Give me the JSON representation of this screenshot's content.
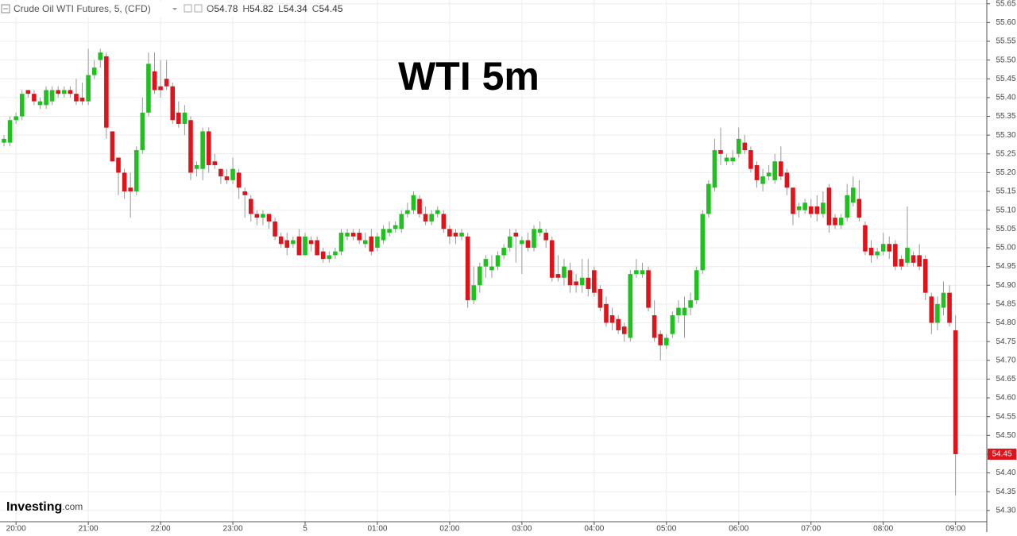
{
  "header": {
    "symbol": "Crude Oil WTI Futures, 5, (CFD)",
    "open_label": "O",
    "open": 54.78,
    "high_label": "H",
    "high": 54.82,
    "low_label": "L",
    "low": 54.34,
    "close_label": "C",
    "close": 54.45
  },
  "logo": {
    "main": "Investing",
    "suffix": ".com"
  },
  "chart_data": {
    "type": "candlestick",
    "title": "WTI 5m",
    "up_color": "#1fc11f",
    "down_color": "#e0121a",
    "grid": true,
    "x": [
      "19:50",
      "19:55",
      "20:00",
      "20:05",
      "20:10",
      "20:15",
      "20:20",
      "20:25",
      "20:30",
      "20:35",
      "20:40",
      "20:45",
      "20:50",
      "20:55",
      "21:00",
      "21:05",
      "21:10",
      "21:15",
      "21:20",
      "21:25",
      "21:30",
      "21:35",
      "21:40",
      "21:45",
      "21:50",
      "21:55",
      "22:00",
      "22:05",
      "22:10",
      "22:15",
      "22:20",
      "22:25",
      "22:30",
      "22:35",
      "22:40",
      "22:45",
      "22:50",
      "22:55",
      "23:00",
      "23:05",
      "23:10",
      "23:15",
      "23:20",
      "23:25",
      "23:30",
      "23:35",
      "23:40",
      "23:45",
      "23:50",
      "23:55",
      "00:00",
      "00:05",
      "00:10",
      "00:15",
      "00:20",
      "00:25",
      "00:30",
      "00:35",
      "00:40",
      "00:45",
      "00:50",
      "00:55",
      "01:00",
      "01:05",
      "01:10",
      "01:15",
      "01:20",
      "01:25",
      "01:30",
      "01:35",
      "01:40",
      "01:45",
      "01:50",
      "01:55",
      "02:00",
      "02:05",
      "02:10",
      "02:15",
      "02:20",
      "02:25",
      "02:30",
      "02:35",
      "02:40",
      "02:45",
      "02:50",
      "02:55",
      "03:00",
      "03:05",
      "03:10",
      "03:15",
      "03:20",
      "03:25",
      "03:30",
      "03:35",
      "03:40",
      "03:45",
      "03:50",
      "03:55",
      "04:00",
      "04:05",
      "04:10",
      "04:15",
      "04:20",
      "04:25",
      "04:30",
      "04:35",
      "04:40",
      "04:45",
      "04:50",
      "04:55",
      "05:00",
      "05:05",
      "05:10",
      "05:15",
      "05:20",
      "05:25",
      "05:30",
      "05:35",
      "05:40",
      "05:45",
      "05:50",
      "05:55",
      "06:00",
      "06:05",
      "06:10",
      "06:15",
      "06:20",
      "06:25",
      "06:30",
      "06:35",
      "06:40",
      "06:45",
      "06:50",
      "06:55",
      "07:00",
      "07:05",
      "07:10",
      "07:15",
      "07:20",
      "07:25",
      "07:30",
      "07:35",
      "07:40",
      "07:45",
      "07:50",
      "07:55",
      "08:00",
      "08:05",
      "08:10",
      "08:15",
      "08:20",
      "08:25",
      "08:30",
      "08:35",
      "08:40",
      "08:45",
      "08:50",
      "08:55",
      "09:00"
    ],
    "open": [
      55.28,
      55.28,
      55.34,
      55.35,
      55.42,
      55.41,
      55.38,
      55.38,
      55.39,
      55.42,
      55.41,
      55.42,
      55.41,
      55.4,
      55.39,
      55.46,
      55.5,
      55.51,
      55.31,
      55.24,
      55.2,
      55.16,
      55.15,
      55.26,
      55.36,
      55.47,
      55.43,
      55.45,
      55.43,
      55.36,
      55.33,
      55.34,
      55.21,
      55.21,
      55.31,
      55.23,
      55.21,
      55.19,
      55.18,
      55.2,
      55.15,
      55.13,
      55.09,
      55.08,
      55.09,
      55.07,
      55.03,
      55.02,
      55.01,
      55.03,
      54.98,
      55.02,
      55.02,
      54.99,
      54.97,
      54.98,
      54.99,
      55.03,
      55.04,
      55.04,
      55.01,
      55.03,
      55.0,
      55.02,
      55.04,
      55.05,
      55.05,
      55.09,
      55.1,
      55.13,
      55.09,
      55.07,
      55.09,
      55.09,
      55.05,
      55.04,
      55.03,
      55.03,
      54.86,
      54.9,
      54.95,
      54.94,
      54.95,
      54.98,
      55.0,
      55.04,
      55.01,
      55.02,
      55.0,
      55.04,
      55.04,
      55.02,
      54.93,
      54.92,
      54.94,
      54.91,
      54.9,
      54.92,
      54.94,
      54.89,
      54.85,
      54.82,
      54.81,
      54.79,
      54.76,
      54.93,
      54.93,
      54.94,
      54.82,
      54.77,
      54.74,
      54.77,
      54.82,
      54.82,
      54.84,
      54.86,
      54.94,
      55.09,
      55.16,
      55.26,
      55.23,
      55.23,
      55.25,
      55.28,
      55.26,
      55.22,
      55.17,
      55.19,
      55.18,
      55.23,
      55.2,
      55.16,
      55.1,
      55.1,
      55.11,
      55.11,
      55.09,
      55.16,
      55.08,
      55.06,
      55.08,
      55.12,
      55.13,
      55.06,
      55.0,
      54.98,
      54.99,
      55.01,
      55.01,
      54.97,
      54.96,
      54.98,
      54.98,
      54.97,
      54.87,
      54.8,
      54.84,
      54.88,
      54.78
    ],
    "high": [
      55.3,
      55.35,
      55.36,
      55.42,
      55.42,
      55.42,
      55.4,
      55.43,
      55.43,
      55.43,
      55.43,
      55.43,
      55.45,
      55.44,
      55.53,
      55.5,
      55.53,
      55.52,
      55.31,
      55.24,
      55.21,
      55.2,
      55.27,
      55.4,
      55.52,
      55.52,
      55.5,
      55.5,
      55.44,
      55.39,
      55.38,
      55.35,
      55.23,
      55.32,
      55.32,
      55.25,
      55.21,
      55.21,
      55.24,
      55.21,
      55.16,
      55.14,
      55.1,
      55.1,
      55.09,
      55.08,
      55.04,
      55.04,
      55.03,
      55.05,
      55.04,
      55.03,
      55.03,
      55.0,
      54.99,
      55.0,
      55.05,
      55.05,
      55.05,
      55.05,
      55.04,
      55.05,
      55.04,
      55.06,
      55.07,
      55.07,
      55.1,
      55.12,
      55.15,
      55.14,
      55.11,
      55.1,
      55.11,
      55.1,
      55.06,
      55.05,
      55.05,
      55.04,
      54.95,
      54.96,
      54.98,
      54.98,
      54.99,
      55.01,
      55.05,
      55.05,
      55.03,
      55.04,
      55.06,
      55.07,
      55.05,
      55.03,
      54.98,
      54.97,
      54.96,
      54.93,
      54.97,
      54.97,
      54.95,
      54.9,
      54.87,
      54.84,
      54.82,
      54.8,
      54.94,
      54.97,
      54.96,
      54.95,
      54.86,
      54.78,
      54.77,
      54.83,
      54.86,
      54.87,
      54.88,
      54.95,
      55.1,
      55.18,
      55.29,
      55.32,
      55.25,
      55.26,
      55.32,
      55.3,
      55.27,
      55.23,
      55.21,
      55.22,
      55.25,
      55.27,
      55.21,
      55.16,
      55.12,
      55.13,
      55.13,
      55.14,
      55.15,
      55.17,
      55.09,
      55.09,
      55.17,
      55.19,
      55.18,
      55.07,
      55.02,
      55.0,
      55.04,
      55.03,
      55.02,
      54.98,
      55.11,
      54.99,
      55.01,
      54.98,
      54.88,
      54.87,
      54.91,
      54.9,
      54.82
    ],
    "low": [
      55.27,
      55.27,
      55.33,
      55.34,
      55.4,
      55.38,
      55.37,
      55.37,
      55.38,
      55.4,
      55.4,
      55.4,
      55.38,
      55.38,
      55.38,
      55.45,
      55.48,
      55.29,
      55.23,
      55.14,
      55.13,
      55.08,
      55.14,
      55.25,
      55.35,
      55.41,
      55.4,
      55.42,
      55.33,
      55.32,
      55.3,
      55.18,
      55.19,
      55.18,
      55.2,
      55.21,
      55.17,
      55.17,
      55.17,
      55.13,
      55.08,
      55.07,
      55.06,
      55.06,
      55.05,
      55.02,
      55.0,
      54.98,
      55.0,
      54.98,
      54.98,
      54.99,
      54.98,
      54.96,
      54.96,
      54.97,
      54.98,
      55.02,
      55.02,
      55.01,
      55.0,
      54.98,
      54.99,
      55.01,
      55.03,
      55.04,
      55.04,
      55.08,
      55.09,
      55.08,
      55.06,
      55.06,
      55.08,
      55.04,
      55.01,
      55.01,
      55.02,
      54.84,
      54.85,
      54.88,
      54.92,
      54.92,
      54.94,
      54.97,
      54.99,
      54.96,
      54.93,
      54.99,
      54.99,
      55.03,
      55.0,
      54.91,
      54.91,
      54.9,
      54.88,
      54.88,
      54.88,
      54.87,
      54.87,
      54.83,
      54.79,
      54.78,
      54.77,
      54.75,
      54.75,
      54.92,
      54.92,
      54.83,
      54.75,
      54.7,
      54.73,
      54.76,
      54.8,
      54.76,
      54.82,
      54.85,
      54.93,
      55.08,
      55.15,
      55.22,
      55.22,
      55.22,
      55.24,
      55.25,
      55.2,
      55.16,
      55.15,
      55.18,
      55.17,
      55.18,
      55.14,
      55.06,
      55.08,
      55.09,
      55.08,
      55.07,
      55.08,
      55.04,
      55.05,
      55.05,
      55.07,
      55.11,
      55.07,
      54.98,
      54.96,
      54.97,
      54.98,
      54.97,
      54.94,
      54.94,
      54.95,
      54.95,
      54.94,
      54.86,
      54.77,
      54.78,
      54.82,
      54.79,
      54.34
    ],
    "close": [
      55.29,
      55.34,
      55.35,
      55.41,
      55.41,
      55.39,
      55.39,
      55.42,
      55.42,
      55.41,
      55.42,
      55.41,
      55.39,
      55.39,
      55.46,
      55.48,
      55.52,
      55.32,
      55.23,
      55.2,
      55.15,
      55.15,
      55.26,
      55.36,
      55.49,
      55.42,
      55.42,
      55.43,
      55.34,
      55.33,
      55.36,
      55.2,
      55.22,
      55.31,
      55.22,
      55.22,
      55.19,
      55.18,
      55.21,
      55.16,
      55.14,
      55.09,
      55.08,
      55.09,
      55.07,
      55.03,
      55.01,
      55.0,
      55.02,
      54.98,
      55.03,
      55.01,
      54.98,
      54.97,
      54.98,
      54.99,
      55.04,
      55.04,
      55.03,
      55.02,
      55.02,
      54.99,
      55.03,
      55.05,
      55.05,
      55.06,
      55.09,
      55.1,
      55.14,
      55.09,
      55.07,
      55.09,
      55.1,
      55.05,
      55.03,
      55.03,
      55.04,
      54.86,
      54.9,
      54.95,
      54.97,
      54.95,
      54.98,
      55.0,
      55.03,
      55.03,
      55.02,
      55.0,
      55.05,
      55.05,
      55.02,
      54.92,
      54.92,
      54.95,
      54.9,
      54.9,
      54.92,
      54.89,
      54.88,
      54.84,
      54.8,
      54.8,
      54.78,
      54.77,
      54.93,
      54.94,
      54.94,
      54.84,
      54.76,
      54.74,
      54.76,
      54.82,
      54.84,
      54.84,
      54.86,
      54.94,
      55.09,
      55.17,
      55.26,
      55.25,
      55.24,
      55.24,
      55.29,
      55.26,
      55.21,
      55.18,
      55.19,
      55.2,
      55.23,
      55.19,
      55.16,
      55.09,
      55.11,
      55.12,
      55.09,
      55.09,
      55.12,
      55.06,
      55.06,
      55.08,
      55.14,
      55.16,
      55.08,
      54.99,
      54.98,
      54.99,
      55.01,
      54.99,
      54.95,
      54.95,
      55.0,
      54.96,
      54.95,
      54.88,
      54.8,
      54.85,
      54.88,
      54.8,
      54.45
    ],
    "ylim": [
      54.27,
      55.66
    ],
    "yticks": [
      55.65,
      {
        "value": 55.6,
        "label": "55.60"
      },
      55.55,
      {
        "value": 55.5,
        "label": "55.50"
      },
      55.45,
      {
        "value": 55.4,
        "label": "55.40"
      },
      55.35,
      {
        "value": 55.3,
        "label": "55.30"
      },
      55.25,
      {
        "value": 55.2,
        "label": "55.20"
      },
      55.15,
      {
        "value": 55.1,
        "label": "55.10"
      },
      55.05,
      {
        "value": 55,
        "label": "55.00"
      },
      54.95,
      {
        "value": 54.9,
        "label": "54.90"
      },
      54.85,
      {
        "value": 54.8,
        "label": "54.80"
      },
      54.75,
      {
        "value": 54.7,
        "label": "54.70"
      },
      54.65,
      {
        "value": 54.6,
        "label": "54.60"
      },
      54.55,
      {
        "value": 54.5,
        "label": "54.50"
      },
      54.45,
      {
        "value": 54.4,
        "label": "54.40"
      },
      54.35,
      {
        "value": 54.3,
        "label": "54.30"
      }
    ],
    "xticks": [
      "20:00",
      "21:00",
      "22:00",
      "23:00",
      {
        "value": "00:00",
        "label": "5"
      },
      "01:00",
      "02:00",
      "03:00",
      "04:00",
      "05:00",
      "06:00",
      "07:00",
      "08:00",
      "09:00"
    ]
  }
}
